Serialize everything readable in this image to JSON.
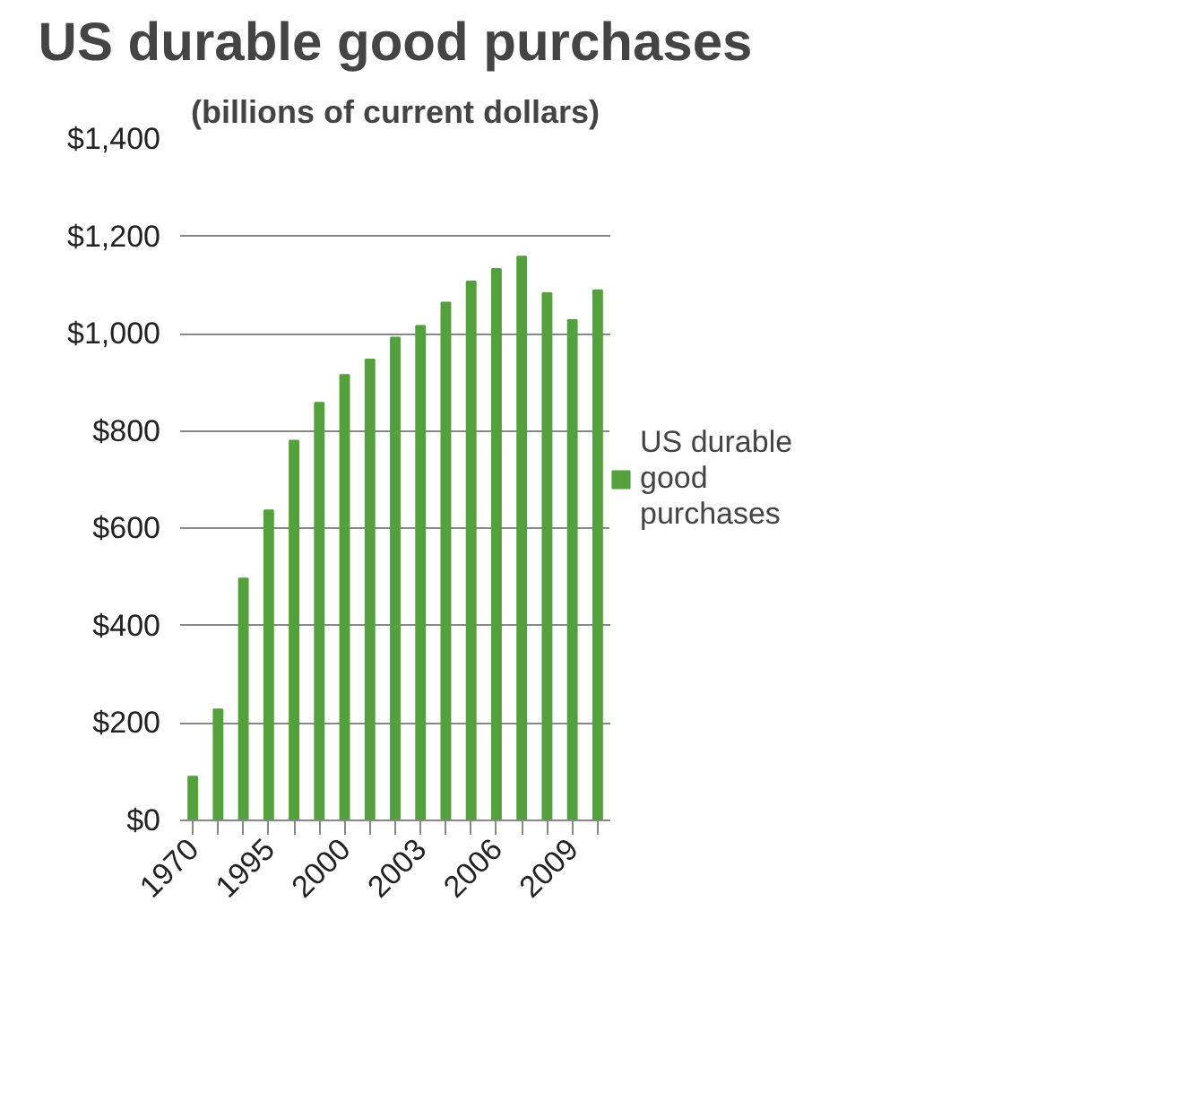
{
  "chart_data": {
    "type": "bar",
    "title": "US durable good purchases",
    "subtitle": "(billions of current dollars)",
    "categories": [
      "1970",
      null,
      null,
      "1995",
      null,
      null,
      "2000",
      null,
      null,
      "2003",
      null,
      null,
      "2006",
      null,
      null,
      "2009",
      null
    ],
    "series": [
      {
        "name": "US durable good purchases",
        "color": "#54a03c",
        "values": [
          90,
          228,
          497,
          637,
          780,
          858,
          915,
          947,
          992,
          1016,
          1064,
          1107,
          1133,
          1158,
          1083,
          1028,
          1089
        ]
      }
    ],
    "ylim": [
      0,
      1400
    ],
    "yticks": [
      {
        "value": 0,
        "label": "$0"
      },
      {
        "value": 200,
        "label": "$200"
      },
      {
        "value": 400,
        "label": "$400"
      },
      {
        "value": 600,
        "label": "$600"
      },
      {
        "value": 800,
        "label": "$800"
      },
      {
        "value": 1000,
        "label": "$1,000"
      },
      {
        "value": 1200,
        "label": "$1,200"
      },
      {
        "value": 1400,
        "label": "$1,400"
      }
    ],
    "grid": "y",
    "legend": "right"
  }
}
